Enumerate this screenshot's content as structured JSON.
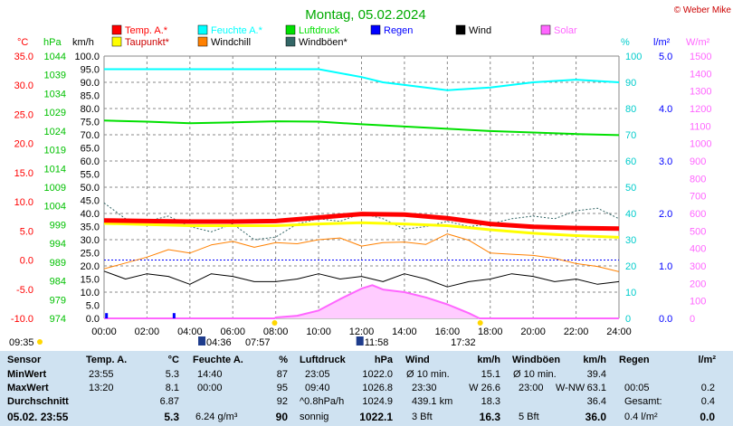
{
  "header": {
    "title": "Montag, 05.02.2024",
    "copyright": "© Weber Mike"
  },
  "legend": [
    {
      "label": "Temp. A.*",
      "color": "#ff0000"
    },
    {
      "label": "Feuchte A.*",
      "color": "#00ffff"
    },
    {
      "label": "Luftdruck",
      "color": "#00e000"
    },
    {
      "label": "Regen",
      "color": "#0000ff"
    },
    {
      "label": "Wind",
      "color": "#000000"
    },
    {
      "label": "Solar",
      "color": "#ff66ff"
    },
    {
      "label": "Taupunkt*",
      "color": "#ffff00"
    },
    {
      "label": "Windchill",
      "color": "#ff8000"
    },
    {
      "label": "Windböen*",
      "color": "#336666"
    }
  ],
  "chart_data": {
    "type": "line",
    "title": "Montag, 05.02.2024",
    "x_ticks": [
      "00:00",
      "02:00",
      "04:00",
      "06:00",
      "08:00",
      "10:00",
      "12:00",
      "14:00",
      "16:00",
      "18:00",
      "20:00",
      "22:00",
      "24:00"
    ],
    "axes": {
      "temp": {
        "unit": "°C",
        "ticks": [
          "35.0",
          "30.0",
          "25.0",
          "20.0",
          "15.0",
          "10.0",
          "5.0",
          "0.0",
          "-5.0",
          "-10.0"
        ],
        "color": "#ff0000",
        "range": [
          -10,
          35
        ]
      },
      "pressure": {
        "unit": "hPa",
        "ticks": [
          "1044",
          "1039",
          "1034",
          "1029",
          "1024",
          "1019",
          "1014",
          "1009",
          "1004",
          "999",
          "994",
          "989",
          "984",
          "979",
          "974"
        ],
        "color": "#00c000",
        "range": [
          974,
          1044
        ]
      },
      "wind": {
        "unit": "km/h",
        "ticks": [
          "100.0",
          "95.0",
          "90.0",
          "85.0",
          "80.0",
          "75.0",
          "70.0",
          "65.0",
          "60.0",
          "55.0",
          "50.0",
          "45.0",
          "40.0",
          "35.0",
          "30.0",
          "25.0",
          "20.0",
          "15.0",
          "10.0",
          "5.0",
          "0.0"
        ],
        "color": "#000000",
        "range": [
          0,
          100
        ]
      },
      "humidity": {
        "unit": "%",
        "ticks": [
          "100",
          "90",
          "80",
          "70",
          "60",
          "50",
          "40",
          "30",
          "20",
          "10",
          "0"
        ],
        "color": "#00cccc",
        "range": [
          0,
          100
        ]
      },
      "rain": {
        "unit": "l/m²",
        "ticks": [
          "5.0",
          "4.0",
          "3.0",
          "2.0",
          "1.0",
          "0.0"
        ],
        "color": "#0000ff",
        "range": [
          0,
          5
        ]
      },
      "solar": {
        "unit": "W/m²",
        "ticks": [
          "1500",
          "1400",
          "1300",
          "1200",
          "1100",
          "1000",
          "900",
          "800",
          "700",
          "600",
          "500",
          "400",
          "300",
          "200",
          "100",
          "0"
        ],
        "color": "#ff66ff",
        "range": [
          0,
          1500
        ]
      }
    },
    "series": [
      {
        "name": "Temp. A.*",
        "axis": "temp",
        "color": "#ff0000",
        "x": [
          0,
          2,
          4,
          6,
          8,
          10,
          12,
          14,
          16,
          18,
          20,
          22,
          24
        ],
        "y": [
          6.8,
          6.7,
          6.6,
          6.6,
          6.7,
          7.3,
          7.9,
          7.8,
          7.2,
          6.2,
          5.7,
          5.5,
          5.4
        ]
      },
      {
        "name": "Taupunkt*",
        "axis": "temp",
        "color": "#ffff00",
        "x": [
          0,
          2,
          4,
          6,
          8,
          10,
          12,
          14,
          16,
          18,
          20,
          22,
          24
        ],
        "y": [
          6.3,
          6.1,
          5.9,
          5.9,
          5.9,
          6.2,
          6.4,
          6.2,
          5.9,
          5.2,
          4.6,
          4.2,
          3.9
        ]
      },
      {
        "name": "Feuchte A.*",
        "axis": "humidity",
        "color": "#00ffff",
        "x": [
          0,
          2,
          4,
          6,
          8,
          10,
          12,
          13,
          14,
          16,
          18,
          20,
          22,
          24
        ],
        "y": [
          95,
          95,
          95,
          95,
          95,
          95,
          92,
          90,
          89,
          87,
          88,
          90,
          91,
          90
        ]
      },
      {
        "name": "Luftdruck",
        "axis": "pressure",
        "color": "#00e000",
        "x": [
          0,
          2,
          4,
          6,
          8,
          10,
          12,
          14,
          16,
          18,
          20,
          22,
          24
        ],
        "y": [
          1026.8,
          1026.5,
          1026.1,
          1026.3,
          1026.6,
          1026.5,
          1025.8,
          1025.2,
          1024.6,
          1024.0,
          1023.6,
          1023.2,
          1022.9
        ]
      },
      {
        "name": "Wind",
        "axis": "wind",
        "color": "#000000",
        "x": [
          0,
          1,
          2,
          3,
          4,
          5,
          6,
          7,
          8,
          9,
          10,
          11,
          12,
          13,
          14,
          15,
          16,
          17,
          18,
          19,
          20,
          21,
          22,
          23,
          24
        ],
        "y": [
          18,
          15,
          17,
          16,
          13,
          17,
          16,
          14,
          14,
          15,
          17,
          15,
          16,
          14,
          17,
          15,
          12,
          14,
          15,
          17,
          16,
          14,
          15,
          13,
          14
        ]
      },
      {
        "name": "Windchill",
        "axis": "temp",
        "color": "#ff8000",
        "x": [
          0,
          1,
          2,
          3,
          4,
          5,
          6,
          7,
          8,
          9,
          10,
          11,
          12,
          13,
          14,
          15,
          16,
          17,
          18,
          19,
          20,
          21,
          22,
          23,
          24
        ],
        "y": [
          -1.5,
          -0.5,
          0.5,
          1.8,
          1.2,
          2.6,
          3.2,
          2.2,
          3.0,
          2.8,
          3.5,
          3.8,
          2.4,
          3.0,
          3.1,
          2.7,
          4.5,
          3.4,
          1.2,
          1.0,
          0.8,
          0.3,
          -0.6,
          -1.1,
          -2.0
        ]
      },
      {
        "name": "Windböen*",
        "axis": "wind",
        "color": "#336666",
        "x": [
          0,
          1,
          2,
          3,
          4,
          5,
          6,
          7,
          8,
          9,
          10,
          11,
          12,
          13,
          14,
          15,
          16,
          17,
          18,
          19,
          20,
          21,
          22,
          23,
          24
        ],
        "y": [
          44,
          38,
          37,
          39,
          35,
          33,
          36,
          30,
          31,
          36,
          38,
          37,
          40,
          38,
          34,
          35,
          37,
          35,
          36,
          38,
          39,
          38,
          41,
          42,
          38
        ]
      },
      {
        "name": "Solar",
        "axis": "solar",
        "color": "#ff66ff",
        "x": [
          0,
          7.95,
          8,
          9,
          10,
          11,
          12,
          12.5,
          13,
          14,
          15,
          16,
          17,
          17.5,
          24
        ],
        "y": [
          0,
          0,
          5,
          15,
          45,
          110,
          170,
          190,
          165,
          150,
          120,
          80,
          30,
          0,
          0
        ]
      },
      {
        "name": "Regen",
        "axis": "rain",
        "color": "#0000ff",
        "x": [
          0.05,
          3.2
        ],
        "y": [
          0.1,
          0.1
        ]
      }
    ],
    "sun": {
      "sunrise": "07:57",
      "sunset": "17:32",
      "moonrise": "04:36",
      "moonset": "11:58",
      "day_start": "09:35"
    },
    "grid": true
  },
  "stats": {
    "headers": [
      "Sensor",
      "Temp. A.",
      "°C",
      "Feuchte A.",
      "%",
      "Luftdruck",
      "hPa",
      "Wind",
      "km/h",
      "Windböen",
      "km/h",
      "Regen",
      "l/m²"
    ],
    "rows": [
      {
        "label": "MinWert",
        "temp_time": "23:55",
        "temp": "5.3",
        "hum_time": "14:40",
        "hum": "87",
        "press_time": "23:05",
        "press": "1022.0",
        "wind_desc": "Ø 10 min.",
        "wind": "15.1",
        "gust_desc": "Ø 10 min.",
        "gust_dir": "",
        "gust": "39.4",
        "rain_desc": "",
        "rain": ""
      },
      {
        "label": "MaxWert",
        "temp_time": "13:20",
        "temp": "8.1",
        "hum_time": "00:00",
        "hum": "95",
        "press_time": "09:40",
        "press": "1026.8",
        "wind_desc": "23:30",
        "wind": "W 26.6",
        "gust_desc": "23:00",
        "gust_dir": "W-NW",
        "gust": "63.1",
        "rain_desc": "00:05",
        "rain": "0.2"
      },
      {
        "label": "Durchschnitt",
        "temp_time": "",
        "temp": "6.87",
        "hum_time": "",
        "hum": "92",
        "press_time": "^0.8hPa/h",
        "press": "1024.9",
        "wind_desc": "439.1 km",
        "wind": "18.3",
        "gust_desc": "",
        "gust_dir": "",
        "gust": "36.4",
        "rain_desc": "Gesamt:",
        "rain": "0.4"
      },
      {
        "label": "05.02. 23:55",
        "temp_time": "",
        "temp": "5.3",
        "hum_time": "6.24 g/m³",
        "hum": "90",
        "press_time": "sonnig",
        "press": "1022.1",
        "wind_desc": "3 Bft",
        "wind": "16.3",
        "gust_desc": "5 Bft",
        "gust_dir": "",
        "gust": "36.0",
        "rain_desc": "0.4 l/m²",
        "rain": "0.0"
      }
    ]
  }
}
